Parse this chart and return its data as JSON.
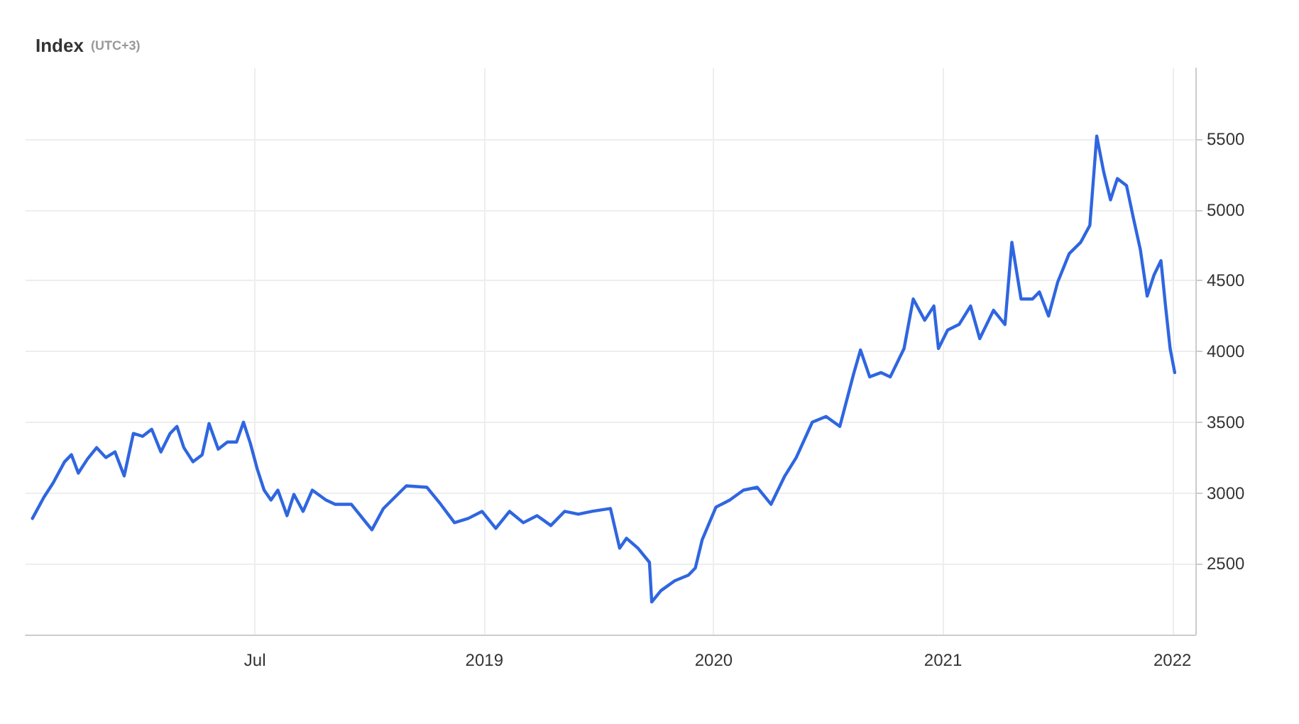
{
  "chart_data": {
    "type": "line",
    "title": "Index",
    "subtitle": "(UTC+3)",
    "x": [
      2017.03,
      2017.08,
      2017.12,
      2017.17,
      2017.2,
      2017.23,
      2017.27,
      2017.31,
      2017.35,
      2017.39,
      2017.43,
      2017.47,
      2017.51,
      2017.55,
      2017.59,
      2017.63,
      2017.66,
      2017.69,
      2017.73,
      2017.77,
      2017.8,
      2017.84,
      2017.88,
      2017.92,
      2017.95,
      2017.98,
      2018.01,
      2018.04,
      2018.07,
      2018.1,
      2018.14,
      2018.17,
      2018.21,
      2018.25,
      2018.31,
      2018.35,
      2018.42,
      2018.46,
      2018.51,
      2018.56,
      2018.61,
      2018.66,
      2018.75,
      2018.81,
      2018.87,
      2018.93,
      2018.99,
      2019.05,
      2019.11,
      2019.17,
      2019.23,
      2019.29,
      2019.35,
      2019.41,
      2019.47,
      2019.55,
      2019.59,
      2019.62,
      2019.67,
      2019.72,
      2019.73,
      2019.77,
      2019.83,
      2019.89,
      2019.92,
      2019.95,
      2020.01,
      2020.07,
      2020.13,
      2020.19,
      2020.25,
      2020.31,
      2020.36,
      2020.43,
      2020.49,
      2020.55,
      2020.61,
      2020.64,
      2020.68,
      2020.73,
      2020.77,
      2020.83,
      2020.87,
      2020.92,
      2020.96,
      2020.98,
      2021.02,
      2021.07,
      2021.12,
      2021.16,
      2021.22,
      2021.27,
      2021.3,
      2021.34,
      2021.39,
      2021.42,
      2021.46,
      2021.5,
      2021.55,
      2021.6,
      2021.64,
      2021.67,
      2021.7,
      2021.73,
      2021.76,
      2021.8,
      2021.83,
      2021.86,
      2021.89,
      2021.92,
      2021.95,
      2021.97,
      2021.99,
      2022.01
    ],
    "series": [
      {
        "color": "#2f66e0",
        "values": [
          2820,
          2970,
          3070,
          3220,
          3270,
          3140,
          3240,
          3320,
          3250,
          3290,
          3120,
          3420,
          3400,
          3450,
          3290,
          3420,
          3470,
          3320,
          3220,
          3270,
          3490,
          3310,
          3360,
          3360,
          3500,
          3350,
          3170,
          3020,
          2950,
          3020,
          2840,
          2990,
          2870,
          3020,
          2950,
          2920,
          2920,
          2840,
          2740,
          2890,
          2970,
          3050,
          3040,
          2920,
          2790,
          2820,
          2870,
          2750,
          2870,
          2790,
          2840,
          2770,
          2870,
          2850,
          2870,
          2890,
          2610,
          2680,
          2610,
          2510,
          2230,
          2310,
          2380,
          2420,
          2470,
          2670,
          2900,
          2950,
          3020,
          3040,
          2920,
          3120,
          3250,
          3500,
          3540,
          3470,
          3840,
          4010,
          3820,
          3850,
          3820,
          4020,
          4370,
          4220,
          4320,
          4020,
          4150,
          4190,
          4320,
          4090,
          4290,
          4190,
          4770,
          4370,
          4370,
          4420,
          4250,
          4490,
          4690,
          4770,
          4890,
          5520,
          5270,
          5070,
          5220,
          5170,
          4940,
          4720,
          4390,
          4540,
          4640,
          4320,
          4020,
          3850
        ]
      }
    ],
    "xlim": [
      2017,
      2022.1
    ],
    "xticks": [
      {
        "value": 2018,
        "label": "Jul"
      },
      2019,
      2020,
      2021,
      2022
    ],
    "ylim": [
      2000,
      6000
    ],
    "yticks": [
      2500,
      3000,
      3500,
      4000,
      4500,
      5000,
      5500
    ],
    "grid": true,
    "marker": "none",
    "line_style": "solid"
  }
}
